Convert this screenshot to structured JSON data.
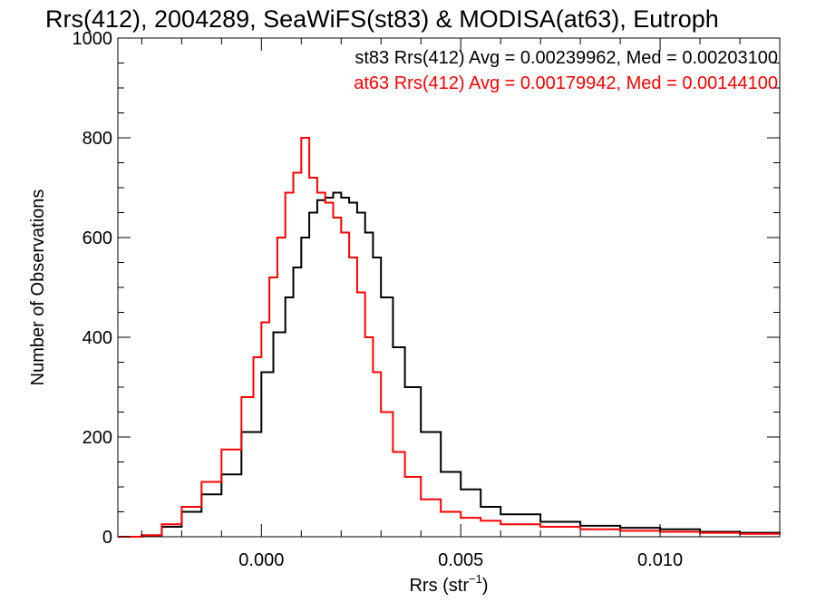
{
  "chart_data": {
    "type": "line",
    "title": "Rrs(412), 2004289, SeaWiFS(st83) & MODISA(at63), Eutroph",
    "xlabel_base": "Rrs (str",
    "xlabel_sup": "−1",
    "xlabel_close": ")",
    "ylabel": "Number of Observations",
    "xlim": [
      -0.0036,
      0.013
    ],
    "ylim": [
      0,
      1000
    ],
    "x_ticks": [
      0.0,
      0.005,
      0.01
    ],
    "x_tick_labels": [
      "0.000",
      "0.005",
      "0.010"
    ],
    "y_ticks": [
      0,
      200,
      400,
      600,
      800,
      1000
    ],
    "y_tick_labels": [
      "0",
      "200",
      "400",
      "600",
      "800",
      "1000"
    ],
    "grid": false,
    "legend_position": "top-right",
    "series": [
      {
        "name": "st83",
        "color": "#000000",
        "stats_label": "st83 Rrs(412) Avg = 0.00239962, Med = 0.00203100",
        "x": [
          -0.0036,
          -0.003,
          -0.0025,
          -0.002,
          -0.0015,
          -0.001,
          -0.0005,
          0.0,
          0.0003,
          0.0006,
          0.0008,
          0.001,
          0.0012,
          0.0014,
          0.0016,
          0.0018,
          0.002,
          0.0022,
          0.0024,
          0.0026,
          0.0028,
          0.003,
          0.0033,
          0.0036,
          0.004,
          0.0045,
          0.005,
          0.0055,
          0.006,
          0.007,
          0.008,
          0.009,
          0.01,
          0.011,
          0.012,
          0.013
        ],
        "y": [
          0,
          3,
          20,
          50,
          85,
          125,
          210,
          330,
          410,
          480,
          540,
          600,
          650,
          675,
          680,
          690,
          680,
          670,
          650,
          610,
          560,
          480,
          380,
          300,
          210,
          130,
          95,
          60,
          45,
          30,
          22,
          18,
          15,
          10,
          8,
          5
        ]
      },
      {
        "name": "at63",
        "color": "#ff0000",
        "stats_label": "at63 Rrs(412) Avg = 0.00179942, Med = 0.00144100",
        "x": [
          -0.0036,
          -0.003,
          -0.0025,
          -0.002,
          -0.0015,
          -0.001,
          -0.0005,
          -0.0002,
          0.0,
          0.0002,
          0.0004,
          0.0006,
          0.0008,
          0.001,
          0.0012,
          0.0014,
          0.0016,
          0.0018,
          0.002,
          0.0022,
          0.0024,
          0.0026,
          0.0028,
          0.003,
          0.0033,
          0.0036,
          0.004,
          0.0045,
          0.005,
          0.0055,
          0.006,
          0.007,
          0.008,
          0.009,
          0.01,
          0.011,
          0.012,
          0.013
        ],
        "y": [
          0,
          3,
          25,
          60,
          110,
          175,
          280,
          360,
          430,
          520,
          600,
          690,
          730,
          800,
          720,
          690,
          670,
          640,
          610,
          560,
          490,
          400,
          330,
          250,
          170,
          120,
          75,
          50,
          38,
          32,
          25,
          20,
          15,
          12,
          10,
          8,
          6,
          5
        ]
      }
    ]
  }
}
